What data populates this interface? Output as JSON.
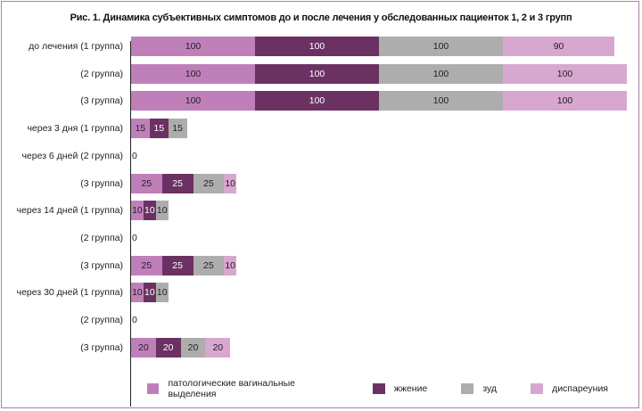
{
  "chart_data": {
    "type": "bar",
    "orientation": "horizontal",
    "stacked": true,
    "title": "Рис. 1. Динамика субъективных симптомов до и после лечения у обследованных пациенток 1, 2 и 3 групп",
    "categories": [
      "до лечения (1 группа)",
      "(2 группа)",
      "(3 группа)",
      "через 3 дня (1 группа)",
      "через 6 дней (2 группа)",
      "(3 группа)",
      "через 14 дней (1 группа)",
      "(2 группа)",
      "(3 группа)",
      "через 30 дней (1 группа)",
      "(2 группа)",
      "(3 группа)"
    ],
    "series": [
      {
        "name": "патологические вагинальные выделения",
        "color": "#bf80ba",
        "values": [
          100,
          100,
          100,
          15,
          0,
          25,
          10,
          0,
          25,
          10,
          0,
          20
        ]
      },
      {
        "name": "жжение",
        "color": "#6b3162",
        "values": [
          100,
          100,
          100,
          15,
          0,
          25,
          10,
          0,
          25,
          10,
          0,
          20
        ]
      },
      {
        "name": "зуд",
        "color": "#adadad",
        "values": [
          100,
          100,
          100,
          15,
          0,
          25,
          10,
          0,
          25,
          10,
          0,
          20
        ]
      },
      {
        "name": "диспареуния",
        "color": "#d8a7d0",
        "values": [
          90,
          100,
          100,
          0,
          0,
          10,
          0,
          0,
          10,
          0,
          0,
          20
        ]
      }
    ],
    "legend_position": "bottom",
    "grid": false,
    "xlim": [
      0,
      400
    ]
  }
}
